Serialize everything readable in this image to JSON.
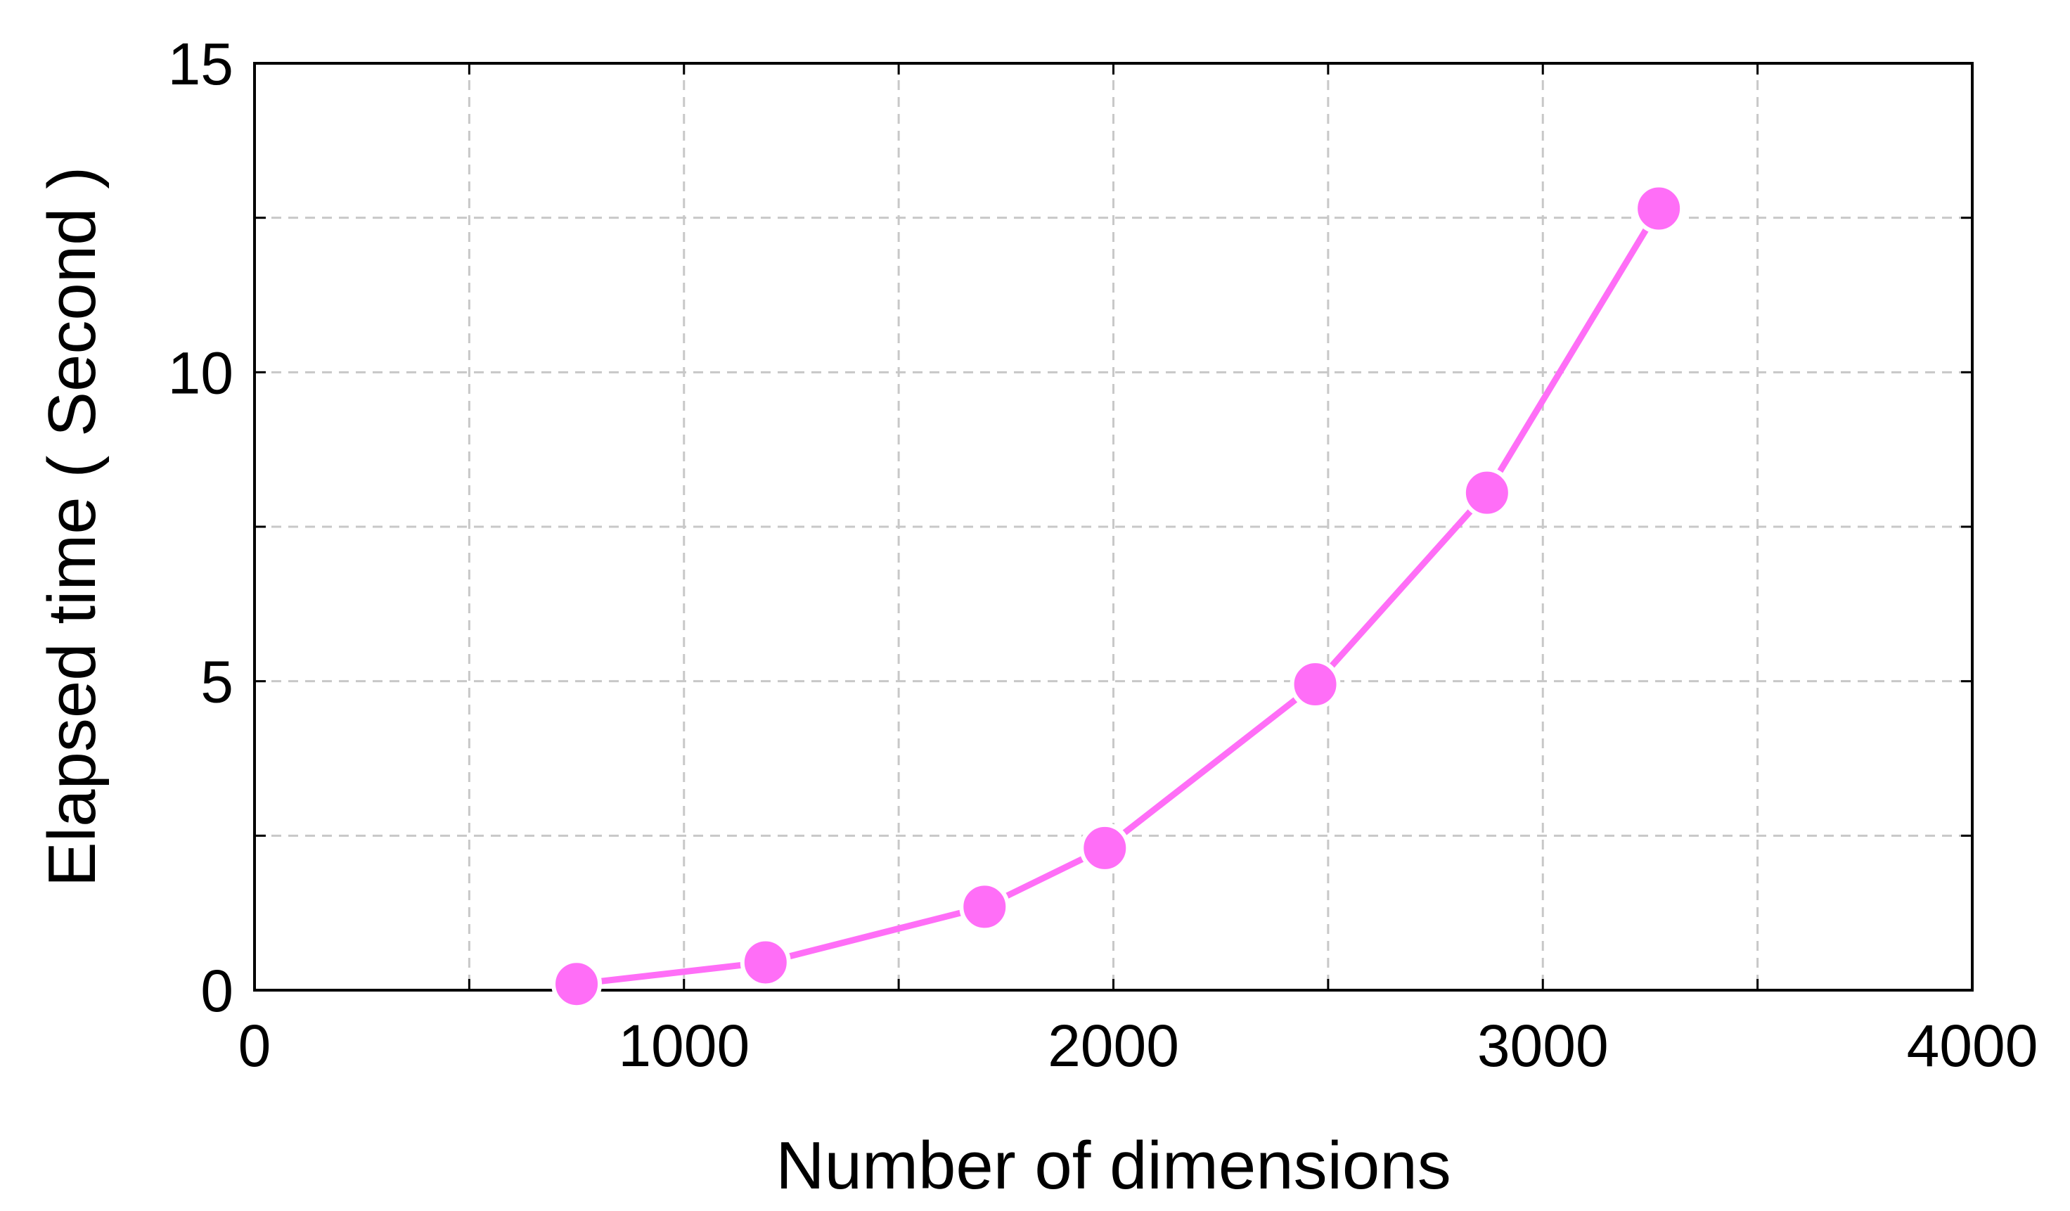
{
  "chart_data": {
    "type": "line",
    "title": "",
    "xlabel": "Number of dimensions",
    "ylabel": "Elapsed time ( Second )",
    "xlim": [
      0,
      4000
    ],
    "ylim": [
      0,
      15
    ],
    "xticks": [
      0,
      1000,
      2000,
      3000,
      4000
    ],
    "yticks": [
      0,
      5,
      10,
      15
    ],
    "xticks_minor": [
      500,
      1500,
      2500,
      3500
    ],
    "yticks_minor": [
      2.5,
      7.5,
      12.5
    ],
    "grid": true,
    "series": [
      {
        "x": [
          750,
          1190,
          1700,
          1980,
          2470,
          2870,
          3270
        ],
        "y": [
          0.1,
          0.45,
          1.35,
          2.3,
          4.95,
          8.05,
          12.65
        ],
        "color": "#ff6ef7",
        "marker": "circle"
      }
    ]
  }
}
